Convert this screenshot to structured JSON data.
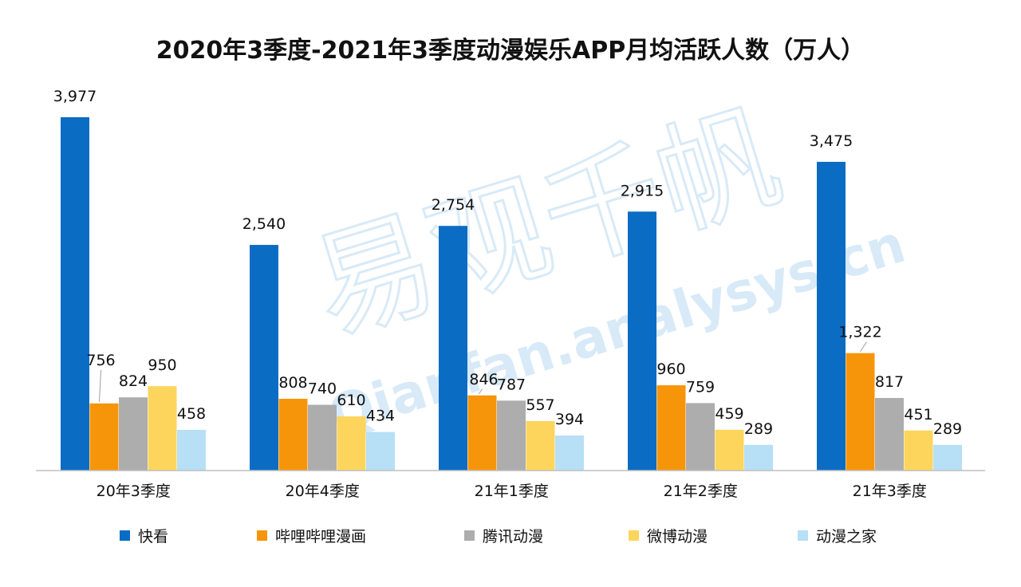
{
  "chart_data": {
    "type": "bar",
    "title": "2020年3季度-2021年3季度动漫娱乐APP月均活跃人数（万人）",
    "categories": [
      "20年3季度",
      "20年4季度",
      "21年1季度",
      "21年2季度",
      "21年3季度"
    ],
    "series": [
      {
        "name": "快看",
        "color": "#0B6CC4",
        "values": [
          3977,
          2540,
          2754,
          2915,
          3475
        ],
        "labels": [
          "3,977",
          "2,540",
          "2,754",
          "2,915",
          "3,475"
        ]
      },
      {
        "name": "哔哩哔哩漫画",
        "color": "#F7950A",
        "values": [
          756,
          808,
          846,
          960,
          1322
        ],
        "labels": [
          "756",
          "808",
          "846",
          "960",
          "1,322"
        ]
      },
      {
        "name": "腾讯动漫",
        "color": "#ADADAD",
        "values": [
          824,
          740,
          787,
          759,
          817
        ],
        "labels": [
          "824",
          "740",
          "787",
          "759",
          "817"
        ]
      },
      {
        "name": "微博动漫",
        "color": "#FDD55C",
        "values": [
          950,
          610,
          557,
          459,
          451
        ],
        "labels": [
          "950",
          "610",
          "557",
          "459",
          "451"
        ]
      },
      {
        "name": "动漫之家",
        "color": "#B7DFF6",
        "values": [
          458,
          434,
          394,
          289,
          289
        ],
        "labels": [
          "458",
          "434",
          "394",
          "289",
          "289"
        ]
      }
    ],
    "legend_position": "bottom",
    "grid": false,
    "ylim": [
      0,
      4000
    ]
  },
  "watermark": {
    "text_cn": "易观千帆",
    "text_en": "Qianfan.analysys.cn",
    "color": "#D8EAF7"
  }
}
